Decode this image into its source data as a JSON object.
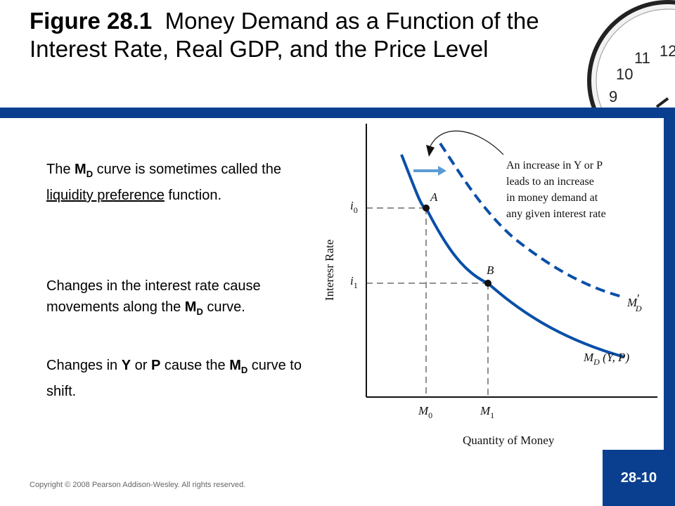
{
  "title": {
    "figure": "Figure 28.1",
    "text": "Money Demand as a Function of the Interest Rate, Real GDP, and the Price Level"
  },
  "text_blocks": {
    "p1": {
      "pre": "The ",
      "bold": "M",
      "sub": "D",
      "mid": " curve is sometimes called the ",
      "underlined": "liquidity preference",
      "post": " function."
    },
    "p2": {
      "pre": "Changes in the interest rate cause movements along the ",
      "bold": "M",
      "sub": "D",
      "post": " curve."
    },
    "p3": {
      "pre": "Changes in ",
      "y": "Y",
      "or": " or ",
      "p": "P",
      "mid": " cause the ",
      "bold": "M",
      "sub": "D",
      "post": " curve to shift."
    }
  },
  "chart_data": {
    "type": "line",
    "xlabel": "Quantity of Money",
    "ylabel": "Interesr Rate",
    "x_ticks": [
      {
        "base": "M",
        "sub": "0"
      },
      {
        "base": "M",
        "sub": "1"
      }
    ],
    "y_ticks": [
      {
        "base": "i",
        "sub": "0"
      },
      {
        "base": "i",
        "sub": "1"
      }
    ],
    "points": [
      {
        "label": "A",
        "x": "M0",
        "y": "i0"
      },
      {
        "label": "B",
        "x": "M1",
        "y": "i1"
      }
    ],
    "series": [
      {
        "name": "M_D (Y, P)",
        "label_base": "M",
        "label_sub": "D",
        "label_suffix": " (Y, P)",
        "style": "solid"
      },
      {
        "name": "M'_D",
        "label_base": "M",
        "label_prime": "′",
        "label_sub": "D",
        "style": "dashed"
      }
    ],
    "annotation": [
      "An increase in Y or P",
      "leads to an increase",
      "in money demand at",
      "any given interest rate"
    ],
    "colors": {
      "curve": "#0a4fa8",
      "arrow": "#5b9bd5"
    }
  },
  "footer": {
    "copyright": "Copyright © 2008 Pearson Addison-Wesley. All rights reserved.",
    "slide_number": "28-10"
  },
  "clock": {
    "numbers": [
      "12",
      "11",
      "10",
      "9"
    ]
  }
}
